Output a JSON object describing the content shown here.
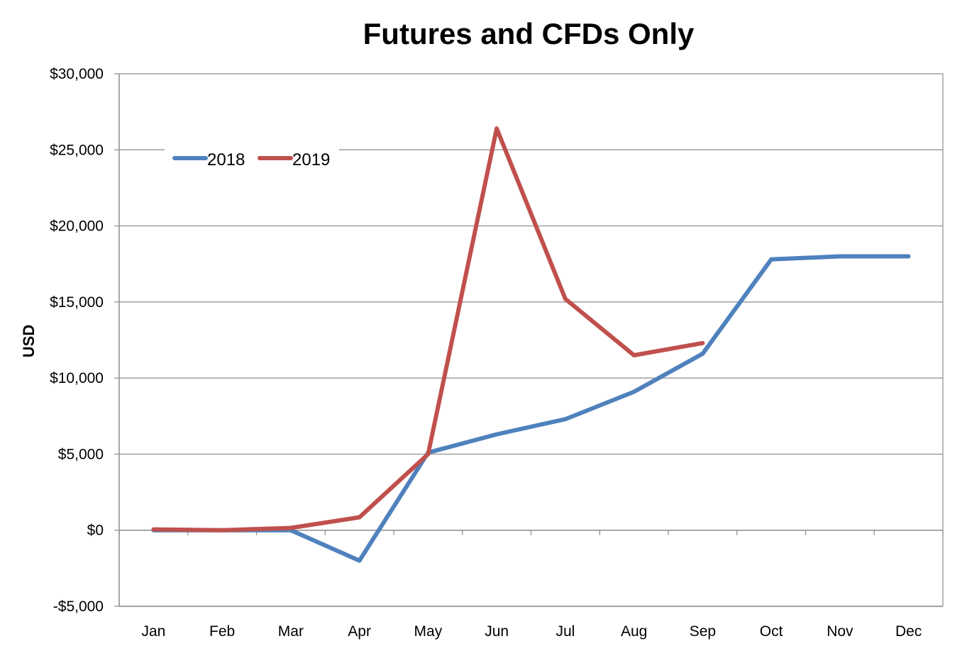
{
  "chart_data": {
    "type": "line",
    "title": "Futures and CFDs Only",
    "xlabel": "",
    "ylabel": "USD",
    "categories": [
      "Jan",
      "Feb",
      "Mar",
      "Apr",
      "May",
      "Jun",
      "Jul",
      "Aug",
      "Sep",
      "Oct",
      "Nov",
      "Dec"
    ],
    "ylim": [
      -5000,
      30000
    ],
    "yticks": [
      -5000,
      0,
      5000,
      10000,
      15000,
      20000,
      25000,
      30000
    ],
    "ytick_labels": [
      "-$5,000",
      "$0",
      "$5,000",
      "$10,000",
      "$15,000",
      "$20,000",
      "$25,000",
      "$30,000"
    ],
    "grid": true,
    "legend_position": "top-left",
    "series": [
      {
        "name": "2018",
        "color": "#4F81BD",
        "values": [
          0,
          0,
          0,
          -2000,
          5100,
          6300,
          7300,
          9100,
          11600,
          17800,
          18000,
          18000
        ]
      },
      {
        "name": "2019",
        "color": "#C0504D",
        "values": [
          50,
          0,
          150,
          850,
          5000,
          26400,
          15200,
          11500,
          12300,
          null,
          null,
          null
        ]
      }
    ]
  }
}
